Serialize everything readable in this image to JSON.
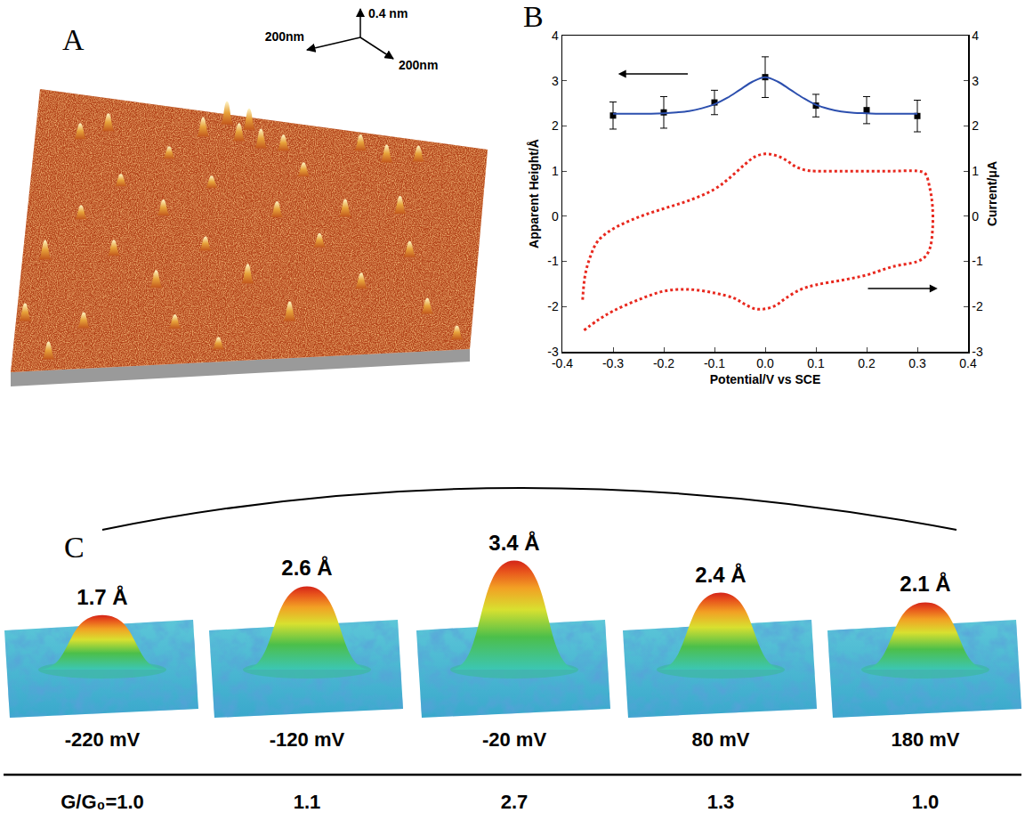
{
  "panel_a": {
    "letter": "A",
    "scale_labels": {
      "x": "200nm",
      "y": "200nm",
      "z": "0.4 nm"
    }
  },
  "panel_b": {
    "letter": "B"
  },
  "chart_data": {
    "type": "line",
    "xlabel": "Potential/V vs SCE",
    "ylabel": "Apparent Height/Å",
    "y2label": "Current/μA",
    "xlim": [
      -0.4,
      0.4
    ],
    "xticks": [
      -0.4,
      -0.3,
      -0.2,
      -0.1,
      {
        "value": 0,
        "label": "0.0"
      },
      0.1,
      0.2,
      0.3,
      0.4
    ],
    "ylim": [
      -3,
      4
    ],
    "yticks": [
      -3,
      -2,
      -1,
      0,
      1,
      2,
      3,
      4
    ],
    "y2lim": [
      -3,
      4
    ],
    "y2ticks": [
      -3,
      -2,
      -1,
      0,
      1,
      2,
      3,
      4
    ],
    "grid": false,
    "series": [
      {
        "type": "scatter",
        "marker": "square",
        "color": "#000000",
        "x": [
          -0.3,
          -0.2,
          -0.1,
          0,
          0.1,
          0.2,
          0.3
        ],
        "values": [
          2.23,
          2.3,
          2.52,
          3.08,
          2.45,
          2.35,
          2.22
        ],
        "error": [
          0.3,
          0.35,
          0.27,
          0.45,
          0.25,
          0.3,
          0.35
        ]
      },
      {
        "type": "line",
        "line_style": "solid",
        "color": "#2c4fae",
        "x": [
          -0.3,
          -0.275,
          -0.25,
          -0.225,
          -0.2,
          -0.175,
          -0.15,
          -0.125,
          -0.1,
          -0.075,
          -0.05,
          -0.025,
          0,
          0.025,
          0.05,
          0.075,
          0.1,
          0.125,
          0.15,
          0.175,
          0.2,
          0.225,
          0.25,
          0.275,
          0.3
        ],
        "values": [
          2.27,
          2.27,
          2.27,
          2.27,
          2.28,
          2.3,
          2.33,
          2.39,
          2.48,
          2.62,
          2.8,
          2.98,
          3.08,
          2.98,
          2.8,
          2.62,
          2.47,
          2.38,
          2.32,
          2.29,
          2.28,
          2.27,
          2.27,
          2.27,
          2.27
        ]
      },
      {
        "type": "line",
        "line_style": "dotted",
        "color": "#e8281e",
        "axis": "y2",
        "x": [
          -0.36,
          -0.355,
          -0.345,
          -0.33,
          -0.3,
          -0.25,
          -0.2,
          -0.15,
          -0.1,
          -0.07,
          -0.04,
          -0.02,
          0,
          0.02,
          0.04,
          0.06,
          0.08,
          0.1,
          0.15,
          0.2,
          0.25,
          0.3,
          0.315,
          0.325,
          0.33,
          0.33,
          0.325,
          0.315,
          0.3,
          0.25,
          0.2,
          0.15,
          0.1,
          0.07,
          0.04,
          0.02,
          0,
          -0.02,
          -0.04,
          -0.06,
          -0.1,
          -0.15,
          -0.2,
          -0.25,
          -0.3,
          -0.33,
          -0.36
        ],
        "values": [
          -1.85,
          -1.3,
          -0.9,
          -0.55,
          -0.28,
          -0.02,
          0.17,
          0.35,
          0.6,
          0.85,
          1.15,
          1.32,
          1.38,
          1.35,
          1.25,
          1.1,
          1.02,
          1.0,
          1.0,
          1.0,
          1.0,
          1.0,
          0.95,
          0.6,
          0.2,
          -0.3,
          -0.7,
          -0.9,
          -1.0,
          -1.12,
          -1.3,
          -1.42,
          -1.52,
          -1.62,
          -1.82,
          -1.98,
          -2.05,
          -2.05,
          -1.95,
          -1.82,
          -1.7,
          -1.62,
          -1.66,
          -1.85,
          -2.1,
          -2.3,
          -2.55
        ]
      }
    ]
  },
  "panel_c": {
    "letter": "C",
    "heights": [
      1.7,
      2.6,
      3.4,
      2.4,
      2.1
    ],
    "height_labels": [
      "1.7 Å",
      "2.6 Å",
      "3.4 Å",
      "2.4 Å",
      "2.1 Å"
    ],
    "potentials": [
      "-220 mV",
      "-120 mV",
      "-20 mV",
      "80 mV",
      "180 mV"
    ],
    "conductance_prefix": "G/G₀=",
    "conductances": [
      "1.0",
      "1.1",
      "2.7",
      "1.3",
      "1.0"
    ]
  }
}
